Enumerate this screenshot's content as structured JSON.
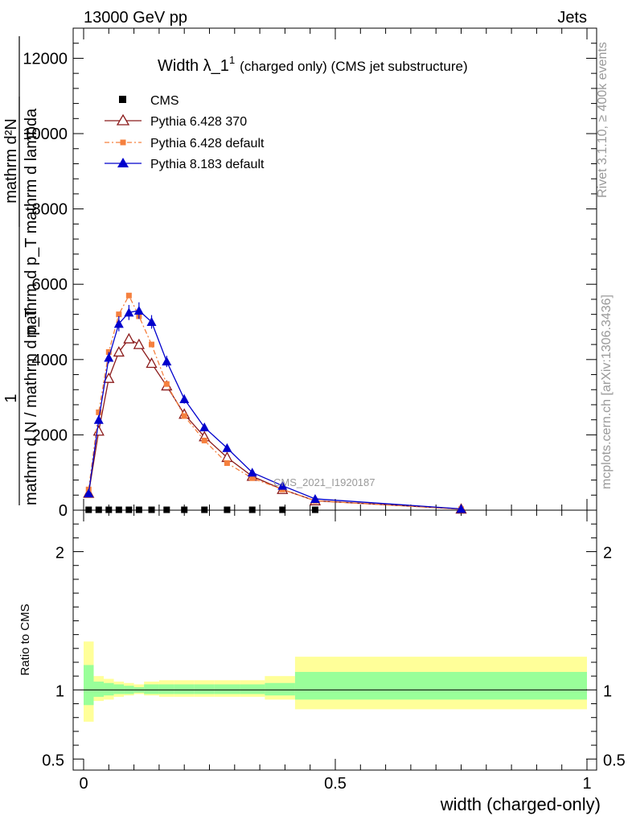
{
  "header": {
    "left": "13000 GeV pp",
    "right": "Jets"
  },
  "side": {
    "rivet": "Rivet 3.1.10, ≥ 400k events",
    "mcplots": "mcplots.cern.ch [arXiv:1306.3436]"
  },
  "chart_data": [
    {
      "type": "line",
      "panel": "main",
      "title": "Width λ_1",
      "title_sup": "1",
      "subtitle": "(charged only) (CMS jet substructure)",
      "ylabel_line1": "mathrm d²N",
      "ylabel_line2": "mathrm d p_T mathrm d lambda",
      "ylabel_numerator": "1",
      "ylabel_denominator": "mathrm d N / mathrm d p_T",
      "watermark": "CMS_2021_I1920187",
      "xlim": [
        0,
        1
      ],
      "ylim": [
        0,
        12800
      ],
      "y_ticks": [
        0,
        2000,
        4000,
        6000,
        8000,
        10000,
        12000
      ],
      "y_tick_labels": [
        "0",
        "2000",
        "4000",
        "6000",
        "8000",
        "10000",
        "12000"
      ],
      "series": [
        {
          "name": "CMS",
          "marker": "square",
          "color": "#000000",
          "x": [
            0.01,
            0.03,
            0.05,
            0.07,
            0.09,
            0.11,
            0.135,
            0.165,
            0.2,
            0.24,
            0.285,
            0.335,
            0.395,
            0.46
          ],
          "y": [
            10,
            10,
            10,
            10,
            10,
            10,
            10,
            10,
            10,
            10,
            10,
            10,
            10,
            10
          ]
        },
        {
          "name": "Pythia 6.428 370",
          "marker": "triangle-open",
          "color": "#8b1a1a",
          "x": [
            0.01,
            0.03,
            0.05,
            0.07,
            0.09,
            0.11,
            0.135,
            0.165,
            0.2,
            0.24,
            0.285,
            0.335,
            0.395,
            0.46,
            0.75
          ],
          "y": [
            450,
            2100,
            3500,
            4200,
            4550,
            4400,
            3900,
            3300,
            2550,
            1950,
            1400,
            900,
            550,
            250,
            30
          ]
        },
        {
          "name": "Pythia 6.428 default",
          "marker": "square-small",
          "color": "#f5803e",
          "x": [
            0.01,
            0.03,
            0.05,
            0.07,
            0.09,
            0.11,
            0.135,
            0.165,
            0.2,
            0.24,
            0.285,
            0.335,
            0.395,
            0.46,
            0.75
          ],
          "y": [
            550,
            2600,
            4200,
            5200,
            5700,
            5150,
            4400,
            3350,
            2500,
            1850,
            1250,
            850,
            550,
            250,
            25
          ]
        },
        {
          "name": "Pythia 8.183 default",
          "marker": "triangle",
          "color": "#0000cc",
          "x": [
            0.01,
            0.03,
            0.05,
            0.07,
            0.09,
            0.11,
            0.135,
            0.165,
            0.2,
            0.24,
            0.285,
            0.335,
            0.395,
            0.46,
            0.75
          ],
          "y": [
            450,
            2400,
            4050,
            4950,
            5250,
            5300,
            5000,
            3950,
            2950,
            2200,
            1650,
            1000,
            650,
            300,
            35
          ],
          "err": [
            0,
            120,
            150,
            200,
            200,
            220,
            180,
            150,
            120,
            100,
            80,
            60,
            40,
            30,
            10
          ]
        }
      ]
    },
    {
      "type": "area",
      "panel": "ratio",
      "ylabel": "Ratio to CMS",
      "xlabel": "width (charged-only)",
      "xlim": [
        0,
        1
      ],
      "ylim": [
        0.42,
        2.3
      ],
      "y_ticks": [
        0.5,
        1,
        2
      ],
      "y_tick_labels": [
        "0.5",
        "1",
        "2"
      ],
      "x_ticks": [
        0,
        0.5,
        1
      ],
      "x_tick_labels": [
        "0",
        "0.5",
        "1"
      ],
      "bands": [
        {
          "name": "total",
          "color": "#ffff99",
          "edges": [
            0,
            0.02,
            0.04,
            0.06,
            0.08,
            0.1,
            0.12,
            0.15,
            0.18,
            0.22,
            0.26,
            0.31,
            0.36,
            0.42,
            0.5,
            1.0
          ],
          "lo": [
            0.77,
            0.92,
            0.93,
            0.95,
            0.96,
            0.97,
            0.96,
            0.95,
            0.95,
            0.95,
            0.95,
            0.95,
            0.93,
            0.86,
            0.86
          ],
          "hi": [
            1.35,
            1.1,
            1.08,
            1.06,
            1.05,
            1.04,
            1.06,
            1.07,
            1.07,
            1.07,
            1.07,
            1.07,
            1.1,
            1.24,
            1.24
          ]
        },
        {
          "name": "stat",
          "color": "#99ff99",
          "edges": [
            0,
            0.02,
            0.04,
            0.06,
            0.08,
            0.1,
            0.12,
            0.15,
            0.18,
            0.22,
            0.26,
            0.31,
            0.36,
            0.42,
            0.5,
            1.0
          ],
          "lo": [
            0.89,
            0.95,
            0.96,
            0.97,
            0.97,
            0.98,
            0.97,
            0.97,
            0.97,
            0.97,
            0.97,
            0.97,
            0.96,
            0.93,
            0.93
          ],
          "hi": [
            1.18,
            1.06,
            1.05,
            1.04,
            1.03,
            1.02,
            1.04,
            1.04,
            1.04,
            1.04,
            1.04,
            1.04,
            1.05,
            1.13,
            1.13
          ]
        }
      ]
    }
  ]
}
